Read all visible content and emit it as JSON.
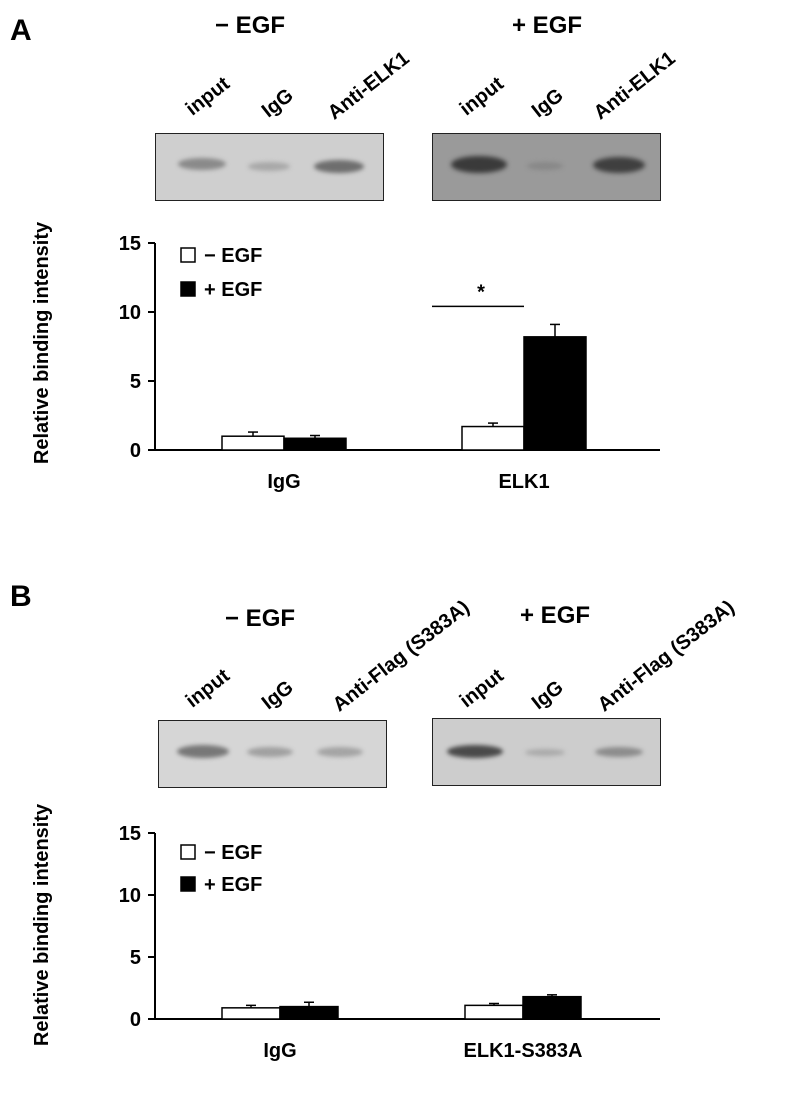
{
  "panels": [
    {
      "letter": "A",
      "blot": {
        "groups": [
          {
            "condition": "− EGF",
            "lanes": [
              "input",
              "IgG",
              "Anti-ELK1"
            ]
          },
          {
            "condition": "+ EGF",
            "lanes": [
              "input",
              "IgG",
              "Anti-ELK1"
            ]
          }
        ]
      }
    },
    {
      "letter": "B",
      "blot": {
        "groups": [
          {
            "condition": "− EGF",
            "lanes": [
              "input",
              "IgG",
              "Anti-Flag (S383A)"
            ]
          },
          {
            "condition": "+ EGF",
            "lanes": [
              "input",
              "IgG",
              "Anti-Flag (S383A)"
            ]
          }
        ]
      }
    }
  ],
  "chart_data": [
    {
      "type": "bar",
      "categories": [
        "IgG",
        "ELK1"
      ],
      "series": [
        {
          "name": "− EGF",
          "values": [
            1.0,
            1.7
          ],
          "errors": [
            0.3,
            0.25
          ],
          "color": "#ffffff"
        },
        {
          "name": "+ EGF",
          "values": [
            0.85,
            8.2
          ],
          "errors": [
            0.2,
            0.9
          ],
          "color": "#000000"
        }
      ],
      "ylabel": "Relative binding intensity",
      "ylim": [
        0,
        15
      ],
      "yticks": [
        0,
        5,
        10,
        15
      ],
      "legend_position": "top-left",
      "grid": false,
      "annotation": {
        "text": "*",
        "between": "ELK1"
      }
    },
    {
      "type": "bar",
      "categories": [
        "IgG",
        "ELK1-S383A"
      ],
      "series": [
        {
          "name": "− EGF",
          "values": [
            0.9,
            1.1
          ],
          "errors": [
            0.2,
            0.15
          ],
          "color": "#ffffff"
        },
        {
          "name": "+ EGF",
          "values": [
            1.0,
            1.8
          ],
          "errors": [
            0.35,
            0.15
          ],
          "color": "#000000"
        }
      ],
      "ylabel": "Relative binding intensity",
      "ylim": [
        0,
        15
      ],
      "yticks": [
        0,
        5,
        10,
        15
      ],
      "legend_position": "top-left",
      "grid": false
    }
  ]
}
